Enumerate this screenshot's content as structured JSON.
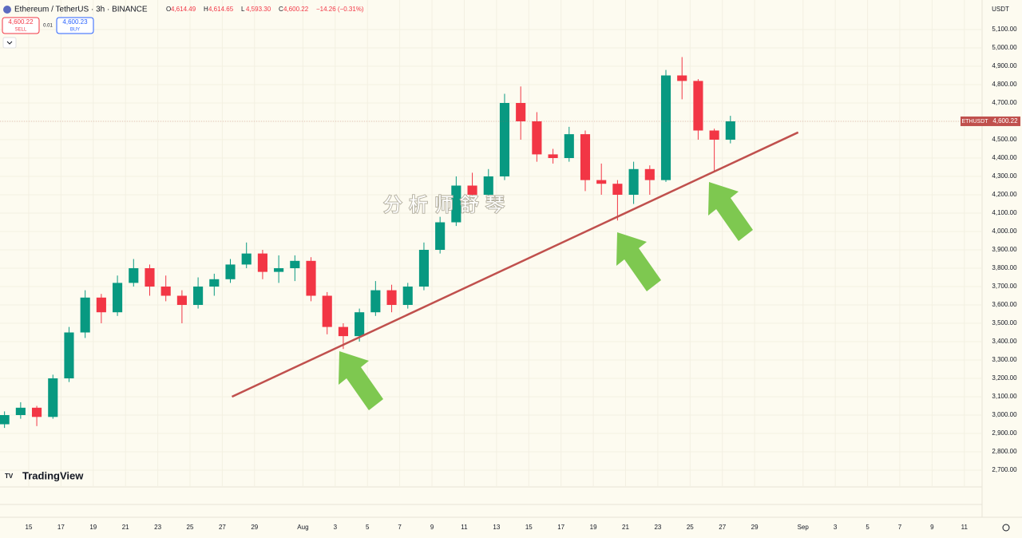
{
  "header": {
    "symbol": "Ethereum / TetherUS · 3h · BINANCE",
    "ohlc": [
      {
        "k": "O",
        "v": "4,614.49"
      },
      {
        "k": "H",
        "v": "4,614.65"
      },
      {
        "k": "L",
        "v": "4,593.30"
      },
      {
        "k": "C",
        "v": "4,600.22"
      }
    ],
    "change": "−14.26 (−0.31%)",
    "sell_price": "4,600.22",
    "sell": "SELL",
    "spread": "0.01",
    "buy_price": "4,600.23",
    "buy": "BUY",
    "currency": "USDT",
    "logo": "TradingView",
    "watermark": "分析师舒琴"
  },
  "chart_data": {
    "type": "candlestick",
    "x": [
      13.5,
      14.5,
      15.5,
      16.5,
      17.5,
      18.5,
      19.5,
      20.5,
      21.5,
      22.5,
      23.5,
      24.5,
      25.5,
      26.5,
      27.5,
      28.5,
      29.5,
      30.5,
      31.5,
      32.5,
      33.5,
      34.5,
      35.5,
      36.5,
      37.5,
      38.5,
      39.5,
      40.5,
      41.5,
      42.5,
      43.5,
      44.5,
      45.5,
      46.5,
      47.5,
      48.5,
      49.5,
      50.5,
      51.5,
      52.5,
      53.5,
      54.5,
      55.5,
      56.5,
      57.5,
      58.5
    ],
    "open": [
      2950,
      3000,
      3040,
      2990,
      3200,
      3450,
      3640,
      3560,
      3720,
      3800,
      3700,
      3650,
      3600,
      3700,
      3740,
      3820,
      3880,
      3780,
      3800,
      3840,
      3650,
      3480,
      3430,
      3560,
      3680,
      3600,
      3700,
      3900,
      4050,
      4250,
      4200,
      4300,
      4700,
      4600,
      4420,
      4400,
      4530,
      4280,
      4260,
      4200,
      4340,
      4280,
      4850,
      4820,
      4550,
      4500
    ],
    "high": [
      3020,
      3070,
      3050,
      3220,
      3480,
      3680,
      3660,
      3760,
      3850,
      3820,
      3760,
      3680,
      3750,
      3770,
      3850,
      3940,
      3900,
      3870,
      3870,
      3860,
      3670,
      3500,
      3580,
      3730,
      3710,
      3720,
      3940,
      4080,
      4300,
      4320,
      4340,
      4750,
      4790,
      4650,
      4450,
      4570,
      4550,
      4370,
      4280,
      4380,
      4360,
      4880,
      4950,
      4830,
      4560,
      4630
    ],
    "low": [
      2930,
      2980,
      2940,
      2980,
      3180,
      3420,
      3500,
      3540,
      3700,
      3650,
      3620,
      3500,
      3580,
      3650,
      3720,
      3800,
      3740,
      3720,
      3730,
      3620,
      3440,
      3360,
      3400,
      3540,
      3560,
      3580,
      3680,
      3880,
      4030,
      4150,
      4180,
      4280,
      4500,
      4380,
      4370,
      4380,
      4220,
      4200,
      4060,
      4150,
      4200,
      4270,
      4720,
      4500,
      4330,
      4480
    ],
    "close": [
      3000,
      3040,
      2990,
      3200,
      3450,
      3640,
      3560,
      3720,
      3800,
      3700,
      3650,
      3600,
      3700,
      3740,
      3820,
      3880,
      3780,
      3800,
      3840,
      3650,
      3480,
      3430,
      3560,
      3680,
      3600,
      3700,
      3900,
      4050,
      4250,
      4200,
      4300,
      4700,
      4600,
      4420,
      4400,
      4530,
      4280,
      4260,
      4200,
      4340,
      4280,
      4850,
      4820,
      4550,
      4500,
      4600
    ],
    "up_color": "#089981",
    "down_color": "#f23645",
    "xlim": [
      13.22,
      74.1
    ],
    "ylim": [
      2608.7,
      5260.9
    ],
    "xticks": [
      15,
      17,
      19,
      21,
      23,
      25,
      27,
      29,
      {
        "value": 32,
        "label": "Aug"
      },
      {
        "value": 34,
        "label": "3"
      },
      {
        "value": 36,
        "label": "5"
      },
      {
        "value": 38,
        "label": "7"
      },
      {
        "value": 40,
        "label": "9"
      },
      {
        "value": 42,
        "label": "11"
      },
      {
        "value": 44,
        "label": "13"
      },
      {
        "value": 46,
        "label": "15"
      },
      {
        "value": 48,
        "label": "17"
      },
      {
        "value": 50,
        "label": "19"
      },
      {
        "value": 52,
        "label": "21"
      },
      {
        "value": 54,
        "label": "23"
      },
      {
        "value": 56,
        "label": "25"
      },
      {
        "value": 58,
        "label": "27"
      },
      {
        "value": 60,
        "label": "29"
      },
      {
        "value": 63,
        "label": "Sep"
      },
      {
        "value": 65,
        "label": "3"
      },
      {
        "value": 67,
        "label": "5"
      },
      {
        "value": 69,
        "label": "7"
      },
      {
        "value": 71,
        "label": "9"
      },
      {
        "value": 73,
        "label": "11"
      }
    ],
    "yticks": [
      {
        "value": 2700,
        "label": "2,700.00"
      },
      {
        "value": 2800,
        "label": "2,800.00"
      },
      {
        "value": 2900,
        "label": "2,900.00"
      },
      {
        "value": 3000,
        "label": "3,000.00"
      },
      {
        "value": 3100,
        "label": "3,100.00"
      },
      {
        "value": 3200,
        "label": "3,200.00"
      },
      {
        "value": 3300,
        "label": "3,300.00"
      },
      {
        "value": 3400,
        "label": "3,400.00"
      },
      {
        "value": 3500,
        "label": "3,500.00"
      },
      {
        "value": 3600,
        "label": "3,600.00"
      },
      {
        "value": 3700,
        "label": "3,700.00"
      },
      {
        "value": 3800,
        "label": "3,800.00"
      },
      {
        "value": 3900,
        "label": "3,900.00"
      },
      {
        "value": 4000,
        "label": "4,000.00"
      },
      {
        "value": 4100,
        "label": "4,100.00"
      },
      {
        "value": 4200,
        "label": "4,200.00"
      },
      {
        "value": 4300,
        "label": "4,300.00"
      },
      {
        "value": 4400,
        "label": "4,400.00"
      },
      {
        "value": 4500,
        "label": "4,500.00"
      },
      {
        "value": 4600,
        "label": "4,600.00"
      },
      {
        "value": 4700,
        "label": "4,700.00"
      },
      {
        "value": 4800,
        "label": "4,800.00"
      },
      {
        "value": 4900,
        "label": "4,900.00"
      },
      {
        "value": 5000,
        "label": "5,000.00"
      },
      {
        "value": 5100,
        "label": "5,100.00"
      }
    ],
    "grid": true,
    "last_price": {
      "name": "ETHUSDT",
      "value": 4600.22,
      "label": "4,600.22",
      "color": "#c0504d"
    },
    "trendline": {
      "x": [
        27.6,
        62.7
      ],
      "y": [
        3100,
        4540
      ],
      "color": "#c0504d"
    }
  }
}
